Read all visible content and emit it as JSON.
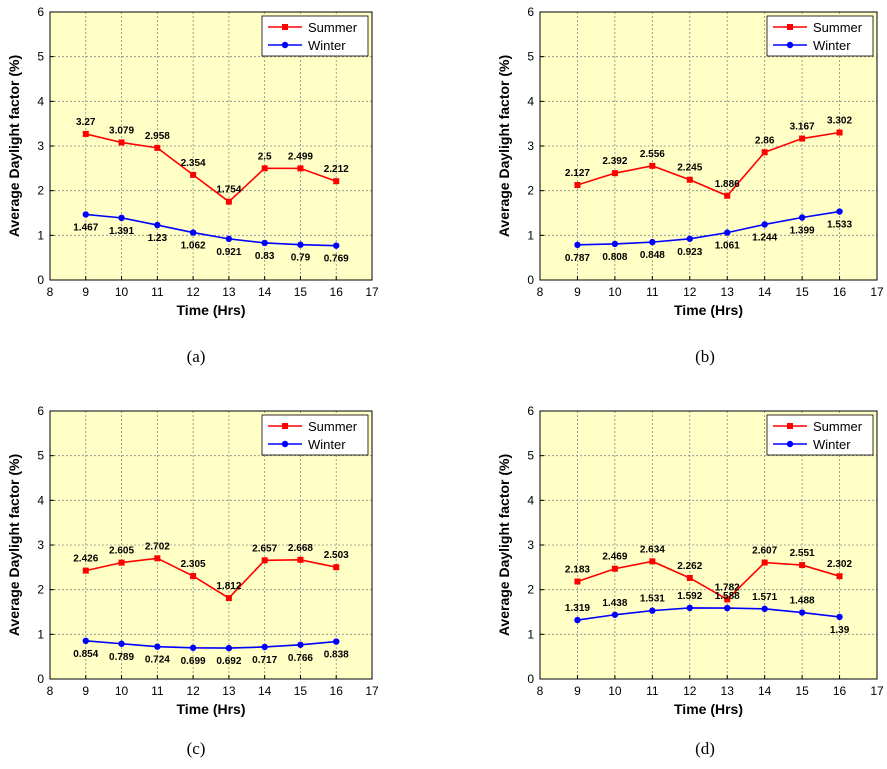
{
  "chart_data": [
    {
      "type": "line",
      "panel_label": "(a)",
      "xlabel": "Time (Hrs)",
      "ylabel": "Average Daylight factor (%)",
      "xlim": [
        8,
        17
      ],
      "ylim": [
        0,
        6
      ],
      "xticks": [
        "8",
        "9",
        "10",
        "11",
        "12",
        "13",
        "14",
        "15",
        "16",
        "17"
      ],
      "yticks": [
        "0",
        "1",
        "2",
        "3",
        "4",
        "5",
        "6"
      ],
      "grid": true,
      "legend_position": "top-right",
      "x": [
        9,
        10,
        11,
        12,
        13,
        14,
        15,
        16
      ],
      "series": [
        {
          "name": "Summer",
          "color": "#ff0000",
          "marker": "square",
          "values": [
            3.27,
            3.079,
            2.958,
            2.354,
            1.754,
            2.5,
            2.499,
            2.212
          ],
          "labels": [
            "3.27",
            "3.079",
            "2.958",
            "2.354",
            "1.754",
            "2.5",
            "2.499",
            "2.212"
          ]
        },
        {
          "name": "Winter",
          "color": "#0000ff",
          "marker": "circle",
          "values": [
            1.467,
            1.391,
            1.23,
            1.062,
            0.921,
            0.83,
            0.79,
            0.769
          ],
          "labels": [
            "1.467",
            "1.391",
            "1.23",
            "1.062",
            "0.921",
            "0.83",
            "0.79",
            "0.769"
          ]
        }
      ]
    },
    {
      "type": "line",
      "panel_label": "(b)",
      "xlabel": "Time (Hrs)",
      "ylabel": "Average Daylight factor (%)",
      "xlim": [
        8,
        17
      ],
      "ylim": [
        0,
        6
      ],
      "xticks": [
        "8",
        "9",
        "10",
        "11",
        "12",
        "13",
        "14",
        "15",
        "16",
        "17"
      ],
      "yticks": [
        "0",
        "1",
        "2",
        "3",
        "4",
        "5",
        "6"
      ],
      "grid": true,
      "legend_position": "top-right",
      "x": [
        9,
        10,
        11,
        12,
        13,
        14,
        15,
        16
      ],
      "series": [
        {
          "name": "Summer",
          "color": "#ff0000",
          "marker": "square",
          "values": [
            2.127,
            2.392,
            2.556,
            2.245,
            1.886,
            2.86,
            3.167,
            3.302
          ],
          "labels": [
            "2.127",
            "2.392",
            "2.556",
            "2.245",
            "1.886",
            "2.86",
            "3.167",
            "3.302"
          ]
        },
        {
          "name": "Winter",
          "color": "#0000ff",
          "marker": "circle",
          "values": [
            0.787,
            0.808,
            0.848,
            0.923,
            1.061,
            1.244,
            1.399,
            1.533
          ],
          "labels": [
            "0.787",
            "0.808",
            "0.848",
            "0.923",
            "1.061",
            "1.244",
            "1.399",
            "1.533"
          ]
        }
      ]
    },
    {
      "type": "line",
      "panel_label": "(c)",
      "xlabel": "Time (Hrs)",
      "ylabel": "Average Daylight factor (%)",
      "xlim": [
        8,
        17
      ],
      "ylim": [
        0,
        6
      ],
      "xticks": [
        "8",
        "9",
        "10",
        "11",
        "12",
        "13",
        "14",
        "15",
        "16",
        "17"
      ],
      "yticks": [
        "0",
        "1",
        "2",
        "3",
        "4",
        "5",
        "6"
      ],
      "grid": true,
      "legend_position": "top-right",
      "x": [
        9,
        10,
        11,
        12,
        13,
        14,
        15,
        16
      ],
      "series": [
        {
          "name": "Summer",
          "color": "#ff0000",
          "marker": "square",
          "values": [
            2.426,
            2.605,
            2.702,
            2.305,
            1.812,
            2.657,
            2.668,
            2.503
          ],
          "labels": [
            "2.426",
            "2.605",
            "2.702",
            "2.305",
            "1.812",
            "2.657",
            "2.668",
            "2.503"
          ]
        },
        {
          "name": "Winter",
          "color": "#0000ff",
          "marker": "circle",
          "values": [
            0.854,
            0.789,
            0.724,
            0.699,
            0.692,
            0.717,
            0.766,
            0.838
          ],
          "labels": [
            "0.854",
            "0.789",
            "0.724",
            "0.699",
            "0.692",
            "0.717",
            "0.766",
            "0.838"
          ]
        }
      ]
    },
    {
      "type": "line",
      "panel_label": "(d)",
      "xlabel": "Time (Hrs)",
      "ylabel": "Average Daylight factor (%)",
      "xlim": [
        8,
        17
      ],
      "ylim": [
        0,
        6
      ],
      "xticks": [
        "8",
        "9",
        "10",
        "11",
        "12",
        "13",
        "14",
        "15",
        "16",
        "17"
      ],
      "yticks": [
        "0",
        "1",
        "2",
        "3",
        "4",
        "5",
        "6"
      ],
      "grid": true,
      "legend_position": "top-right",
      "x": [
        9,
        10,
        11,
        12,
        13,
        14,
        15,
        16
      ],
      "series": [
        {
          "name": "Summer",
          "color": "#ff0000",
          "marker": "square",
          "values": [
            2.183,
            2.469,
            2.634,
            2.262,
            1.782,
            2.607,
            2.551,
            2.302
          ],
          "labels": [
            "2.183",
            "2.469",
            "2.634",
            "2.262",
            "1.782",
            "2.607",
            "2.551",
            "2.302"
          ]
        },
        {
          "name": "Winter",
          "color": "#0000ff",
          "marker": "circle",
          "values": [
            1.319,
            1.438,
            1.531,
            1.592,
            1.588,
            1.571,
            1.488,
            1.39
          ],
          "labels": [
            "1.319",
            "1.438",
            "1.531",
            "1.592",
            "1.588",
            "1.571",
            "1.488",
            "1.39"
          ]
        }
      ]
    }
  ],
  "style": {
    "plot_background": "#ffffc6",
    "grid_color": "#8a8a8a",
    "axis_color": "#000000"
  }
}
